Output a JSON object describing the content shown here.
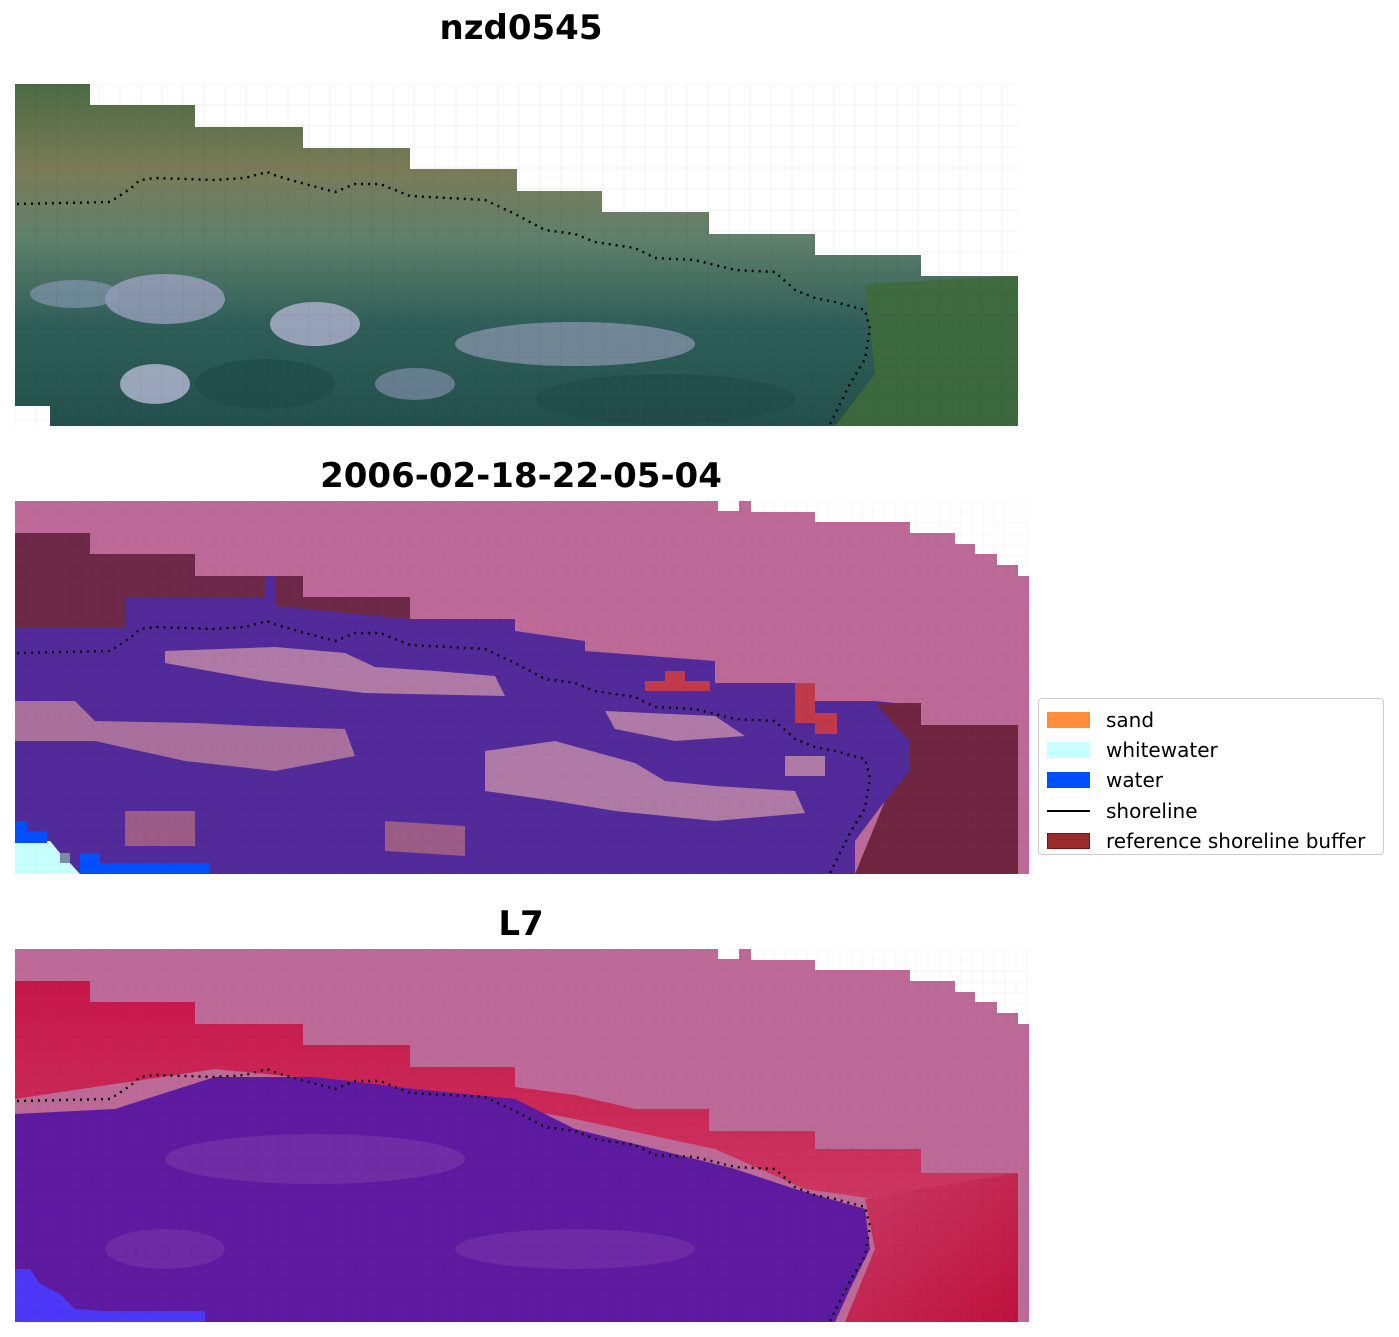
{
  "panels": [
    {
      "title": "nzd0545"
    },
    {
      "title": "2006-02-18-22-05-04"
    },
    {
      "title": "L7"
    }
  ],
  "legend": {
    "items": [
      {
        "label": "sand",
        "kind": "patch",
        "color": "#ff8c3a"
      },
      {
        "label": "whitewater",
        "kind": "patch",
        "color": "#c8ffff"
      },
      {
        "label": "water",
        "kind": "patch",
        "color": "#0050ff"
      },
      {
        "label": "shoreline",
        "kind": "line",
        "color": "#000000"
      },
      {
        "label": "reference shoreline buffer",
        "kind": "patch",
        "color": "#9b2c2c"
      }
    ]
  },
  "colors": {
    "nodata_pink": "#bd6a98",
    "land_green": "#4a6a45",
    "class_water_purple": "#522a9a",
    "buffer_maroon": "#6c2640",
    "index_red": "#c21a4a",
    "index_purple": "#5a1aa0"
  }
}
